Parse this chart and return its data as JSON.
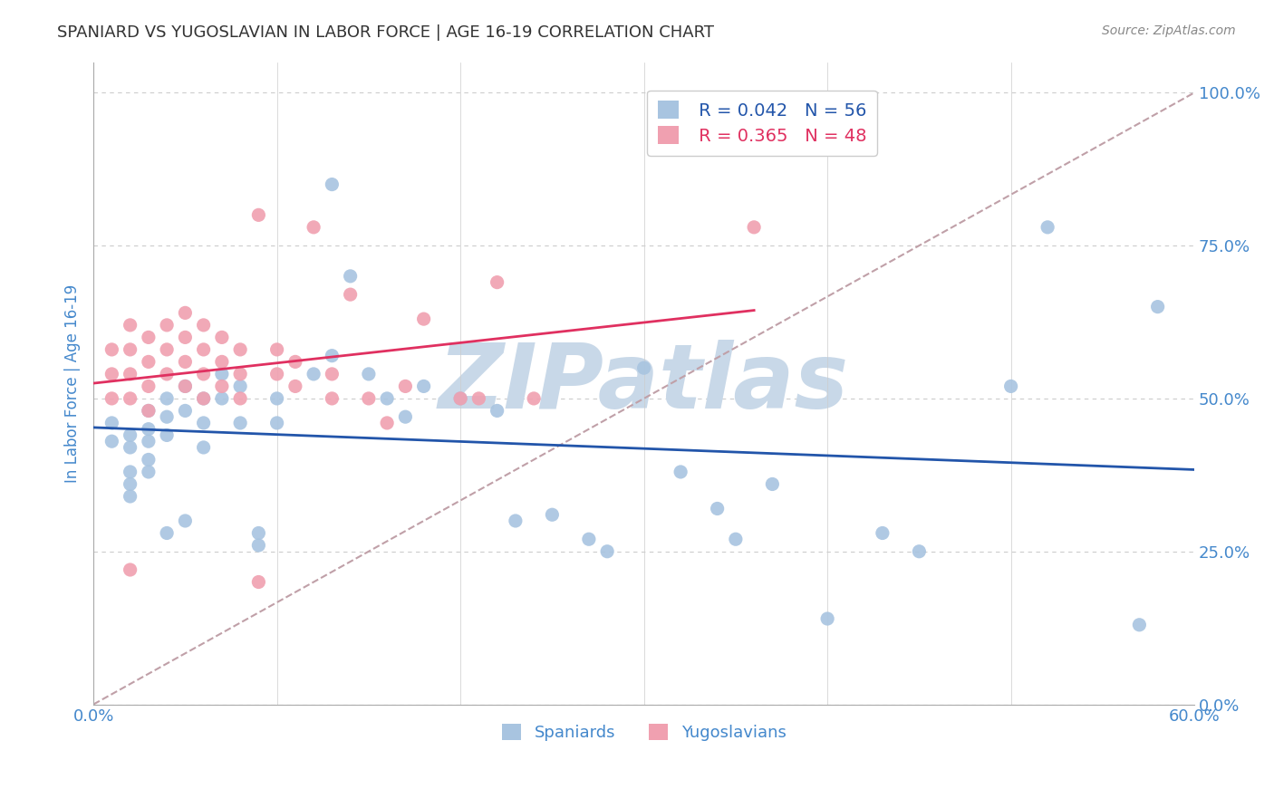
{
  "title": "SPANIARD VS YUGOSLAVIAN IN LABOR FORCE | AGE 16-19 CORRELATION CHART",
  "source": "Source: ZipAtlas.com",
  "xlabel": "",
  "ylabel": "In Labor Force | Age 16-19",
  "xlim": [
    0.0,
    0.6
  ],
  "ylim": [
    0.0,
    1.05
  ],
  "yticks": [
    0.0,
    0.25,
    0.5,
    0.75,
    1.0
  ],
  "ytick_labels": [
    "0.0%",
    "25.0%",
    "50.0%",
    "75.0%",
    "100.0%"
  ],
  "xticks": [
    0.0,
    0.1,
    0.2,
    0.3,
    0.4,
    0.5,
    0.6
  ],
  "xtick_labels": [
    "0.0%",
    "",
    "",
    "",
    "",
    "",
    "60.0%"
  ],
  "spaniards_color": "#a8c4e0",
  "yugoslavians_color": "#f0a0b0",
  "regression_spaniards_color": "#2255aa",
  "regression_yugoslavians_color": "#e03060",
  "diagonal_color": "#c0a0a8",
  "watermark_color": "#c8d8e8",
  "axis_color": "#4488cc",
  "grid_color": "#cccccc",
  "title_color": "#333333",
  "legend_R_spaniards": "R = 0.042",
  "legend_N_spaniards": "N = 56",
  "legend_R_yugoslavians": "R = 0.365",
  "legend_N_yugoslavians": "N = 48",
  "spaniards_x": [
    0.01,
    0.01,
    0.02,
    0.02,
    0.02,
    0.02,
    0.02,
    0.03,
    0.03,
    0.03,
    0.03,
    0.03,
    0.04,
    0.04,
    0.04,
    0.04,
    0.05,
    0.05,
    0.05,
    0.06,
    0.06,
    0.06,
    0.07,
    0.07,
    0.08,
    0.08,
    0.09,
    0.09,
    0.1,
    0.1,
    0.12,
    0.13,
    0.13,
    0.14,
    0.15,
    0.16,
    0.17,
    0.18,
    0.2,
    0.22,
    0.23,
    0.25,
    0.27,
    0.28,
    0.3,
    0.32,
    0.34,
    0.35,
    0.37,
    0.4,
    0.43,
    0.45,
    0.5,
    0.52,
    0.57,
    0.58
  ],
  "spaniards_y": [
    0.43,
    0.46,
    0.44,
    0.42,
    0.38,
    0.36,
    0.34,
    0.48,
    0.45,
    0.43,
    0.4,
    0.38,
    0.5,
    0.47,
    0.44,
    0.28,
    0.52,
    0.48,
    0.3,
    0.5,
    0.46,
    0.42,
    0.54,
    0.5,
    0.52,
    0.46,
    0.28,
    0.26,
    0.5,
    0.46,
    0.54,
    0.57,
    0.85,
    0.7,
    0.54,
    0.5,
    0.47,
    0.52,
    0.5,
    0.48,
    0.3,
    0.31,
    0.27,
    0.25,
    0.55,
    0.38,
    0.32,
    0.27,
    0.36,
    0.14,
    0.28,
    0.25,
    0.52,
    0.78,
    0.13,
    0.65
  ],
  "yugoslavians_x": [
    0.01,
    0.01,
    0.01,
    0.02,
    0.02,
    0.02,
    0.02,
    0.02,
    0.03,
    0.03,
    0.03,
    0.03,
    0.04,
    0.04,
    0.04,
    0.05,
    0.05,
    0.05,
    0.05,
    0.06,
    0.06,
    0.06,
    0.06,
    0.07,
    0.07,
    0.07,
    0.08,
    0.08,
    0.08,
    0.09,
    0.09,
    0.1,
    0.1,
    0.11,
    0.11,
    0.12,
    0.13,
    0.13,
    0.14,
    0.15,
    0.16,
    0.17,
    0.18,
    0.2,
    0.21,
    0.22,
    0.24,
    0.36
  ],
  "yugoslavians_y": [
    0.58,
    0.54,
    0.5,
    0.62,
    0.58,
    0.54,
    0.5,
    0.22,
    0.6,
    0.56,
    0.52,
    0.48,
    0.62,
    0.58,
    0.54,
    0.64,
    0.6,
    0.56,
    0.52,
    0.62,
    0.58,
    0.54,
    0.5,
    0.6,
    0.56,
    0.52,
    0.58,
    0.54,
    0.5,
    0.8,
    0.2,
    0.58,
    0.54,
    0.56,
    0.52,
    0.78,
    0.54,
    0.5,
    0.67,
    0.5,
    0.46,
    0.52,
    0.63,
    0.5,
    0.5,
    0.69,
    0.5,
    0.78
  ],
  "watermark_text": "ZIPatlas"
}
